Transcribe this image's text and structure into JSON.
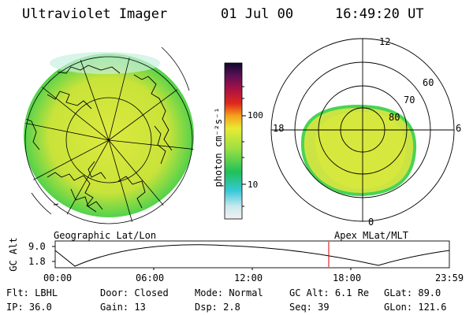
{
  "header": {
    "title": "Ultraviolet Imager",
    "date": "01 Jul 00",
    "time": "16:49:20 UT"
  },
  "colorbar": {
    "unit_label": "photon cm⁻²s⁻¹",
    "ticks": [
      "100",
      "10"
    ]
  },
  "left_panel": {
    "caption": "Geographic Lat/Lon"
  },
  "right_panel": {
    "caption": "Apex MLat/MLT",
    "mlt_labels": {
      "top": "12",
      "left": "18",
      "right": "6",
      "bottom": "0"
    },
    "lat_labels": [
      "60",
      "70",
      "80"
    ]
  },
  "altitude_plot": {
    "ylabel": "GC Alt",
    "y_ticks": [
      "9.0",
      "1.8"
    ],
    "x_ticks": [
      "00:00",
      "06:00",
      "12:00",
      "18:00",
      "23:59"
    ],
    "current_time_fraction": 0.7
  },
  "footer": {
    "row1": [
      {
        "label": "Flt:",
        "value": "LBHL"
      },
      {
        "label": "Door:",
        "value": "Closed"
      },
      {
        "label": "Mode:",
        "value": "Normal"
      },
      {
        "label": "GC Alt:",
        "value": "6.1 Re"
      },
      {
        "label": "GLat:",
        "value": "89.0"
      }
    ],
    "row2": [
      {
        "label": "IP:",
        "value": "36.0"
      },
      {
        "label": "Gain:",
        "value": "13"
      },
      {
        "label": "Dsp:",
        "value": "2.8"
      },
      {
        "label": "Seq:",
        "value": "39"
      },
      {
        "label": "GLon:",
        "value": "121.6"
      }
    ]
  },
  "colors": {
    "background": "#ffffff",
    "image_fill": "#c8e63a",
    "image_edge": "#3fd24a",
    "time_marker": "#cc0000"
  }
}
